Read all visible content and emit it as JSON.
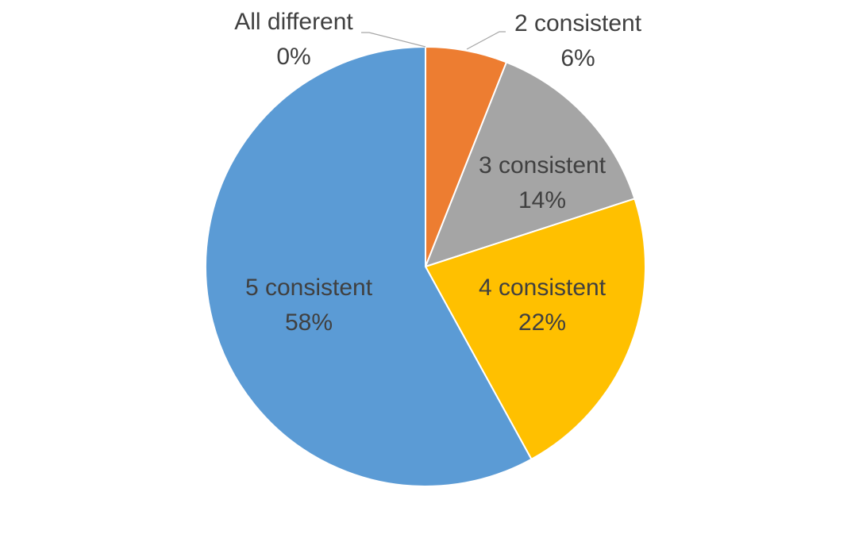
{
  "chart_data": {
    "type": "pie",
    "title": "",
    "start_angle_deg": 0,
    "direction": "clockwise",
    "slices": [
      {
        "label": "All different",
        "value": 0,
        "display": "0%",
        "color": "#4472C4"
      },
      {
        "label": "2 consistent",
        "value": 6,
        "display": "6%",
        "color": "#ED7D31"
      },
      {
        "label": "3 consistent",
        "value": 14,
        "display": "14%",
        "color": "#A5A5A5"
      },
      {
        "label": "4 consistent",
        "value": 22,
        "display": "22%",
        "color": "#FFC000"
      },
      {
        "label": "5 consistent",
        "value": 58,
        "display": "58%",
        "color": "#5B9BD5"
      }
    ],
    "legend": "none",
    "data_labels": "category and percentage"
  }
}
